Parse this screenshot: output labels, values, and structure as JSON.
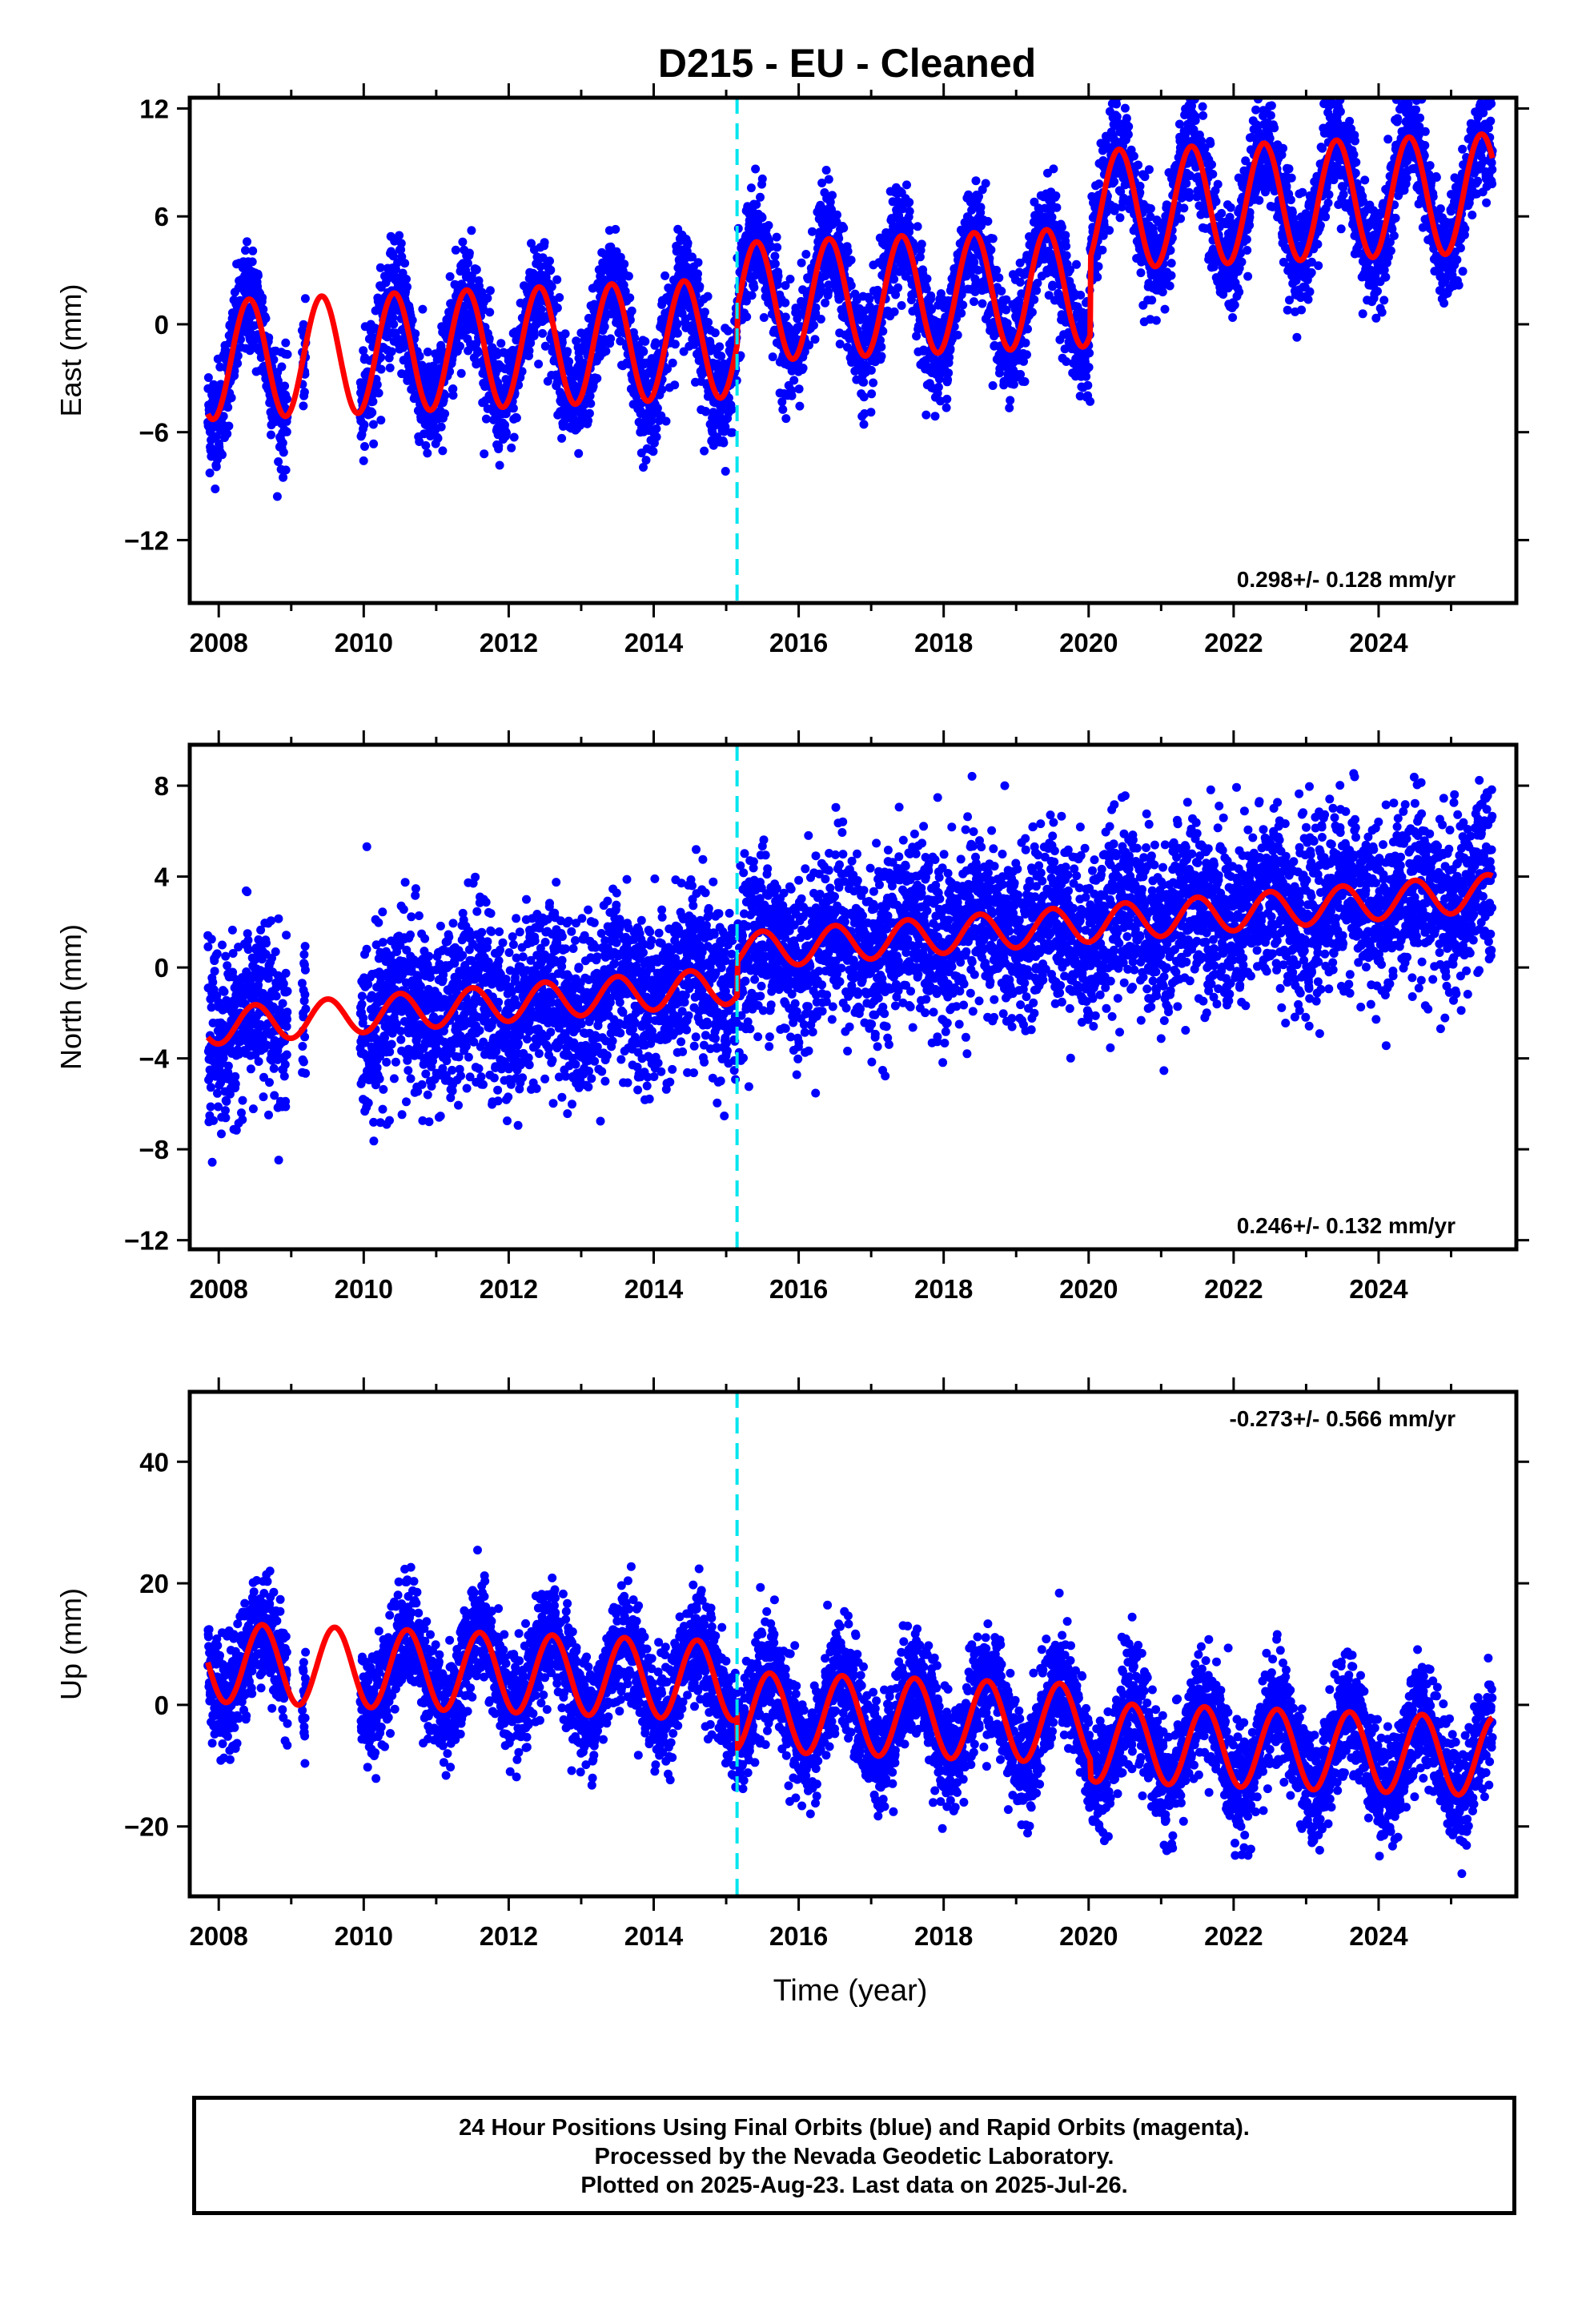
{
  "title": "D215  - EU - Cleaned",
  "xlabel": "Time (year)",
  "footer": {
    "line1": "24 Hour Positions Using Final Orbits (blue) and Rapid Orbits (magenta).",
    "line2": "Processed by the Nevada Geodetic Laboratory.",
    "line3": "Plotted on 2025-Aug-23. Last data on 2025-Jul-26."
  },
  "colors": {
    "data": "#0000ff",
    "model": "#ff0000",
    "event_line": "#00e5ee",
    "frame": "#000000"
  },
  "chart_data": [
    {
      "type": "scatter",
      "panel": "east",
      "ylabel": "East (mm)",
      "rate_text": "0.298+/- 0.128 mm/yr",
      "rate_position": "bottom-right",
      "xlim": [
        2007.6,
        2025.9
      ],
      "ylim": [
        -15.5,
        12.6
      ],
      "yticks": [
        -12,
        -6,
        0,
        6,
        12
      ],
      "xticks": [
        2008,
        2010,
        2012,
        2014,
        2016,
        2018,
        2020,
        2022,
        2024
      ],
      "event_line_x": 2015.15,
      "data_start": 2007.85,
      "data_end": 2025.57,
      "gaps": [
        [
          2008.95,
          2009.15
        ],
        [
          2009.2,
          2009.95
        ]
      ],
      "offsets": [
        {
          "year": 2015.15,
          "value": 2.0
        },
        {
          "year": 2020.02,
          "value": 4.3
        }
      ],
      "trend": [
        {
          "year": 2007.85,
          "value": -2.0
        },
        {
          "year": 2025.57,
          "value": 1.0
        }
      ],
      "seasonal_amplitude": 3.3,
      "seasonal_peak_phase": 0.42,
      "scatter_sd": 1.5,
      "series": [
        {
          "name": "Final Orbits (blue)",
          "role": "data"
        },
        {
          "name": "model",
          "role": "model"
        }
      ]
    },
    {
      "type": "scatter",
      "panel": "north",
      "ylabel": "North (mm)",
      "rate_text": "0.246+/- 0.132 mm/yr",
      "rate_position": "bottom-right",
      "xlim": [
        2007.6,
        2025.9
      ],
      "ylim": [
        -12.4,
        9.8
      ],
      "yticks": [
        -12,
        -8,
        -4,
        0,
        4,
        8
      ],
      "xticks": [
        2008,
        2010,
        2012,
        2014,
        2016,
        2018,
        2020,
        2022,
        2024
      ],
      "event_line_x": 2015.15,
      "data_start": 2007.85,
      "data_end": 2025.57,
      "gaps": [
        [
          2008.95,
          2009.15
        ],
        [
          2009.2,
          2009.95
        ]
      ],
      "offsets": [
        {
          "year": 2015.15,
          "value": 1.5
        }
      ],
      "trend": [
        {
          "year": 2007.85,
          "value": -2.6
        },
        {
          "year": 2025.57,
          "value": 1.8
        }
      ],
      "seasonal_amplitude": 0.8,
      "seasonal_peak_phase": 0.5,
      "scatter_sd": 1.9,
      "series": [
        {
          "name": "Final Orbits (blue)",
          "role": "data"
        },
        {
          "name": "model",
          "role": "model"
        }
      ]
    },
    {
      "type": "scatter",
      "panel": "up",
      "ylabel": "Up (mm)",
      "rate_text": "-0.273+/- 0.566 mm/yr",
      "rate_position": "top-right",
      "xlim": [
        2007.6,
        2025.9
      ],
      "ylim": [
        -31.5,
        51.5
      ],
      "yticks": [
        -20,
        0,
        20,
        40
      ],
      "xticks": [
        2008,
        2010,
        2012,
        2014,
        2016,
        2018,
        2020,
        2022,
        2024
      ],
      "event_line_x": 2015.15,
      "data_start": 2007.85,
      "data_end": 2025.57,
      "gaps": [
        [
          2008.95,
          2009.15
        ],
        [
          2009.2,
          2009.95
        ]
      ],
      "offsets": [
        {
          "year": 2015.15,
          "value": -5.0
        },
        {
          "year": 2020.02,
          "value": -3.0
        }
      ],
      "trend": [
        {
          "year": 2007.85,
          "value": 7.0
        },
        {
          "year": 2025.57,
          "value": -0.5
        }
      ],
      "seasonal_amplitude": 6.5,
      "seasonal_peak_phase": 0.6,
      "scatter_sd": 4.5,
      "series": [
        {
          "name": "Final Orbits (blue)",
          "role": "data"
        },
        {
          "name": "model",
          "role": "model"
        }
      ]
    }
  ]
}
